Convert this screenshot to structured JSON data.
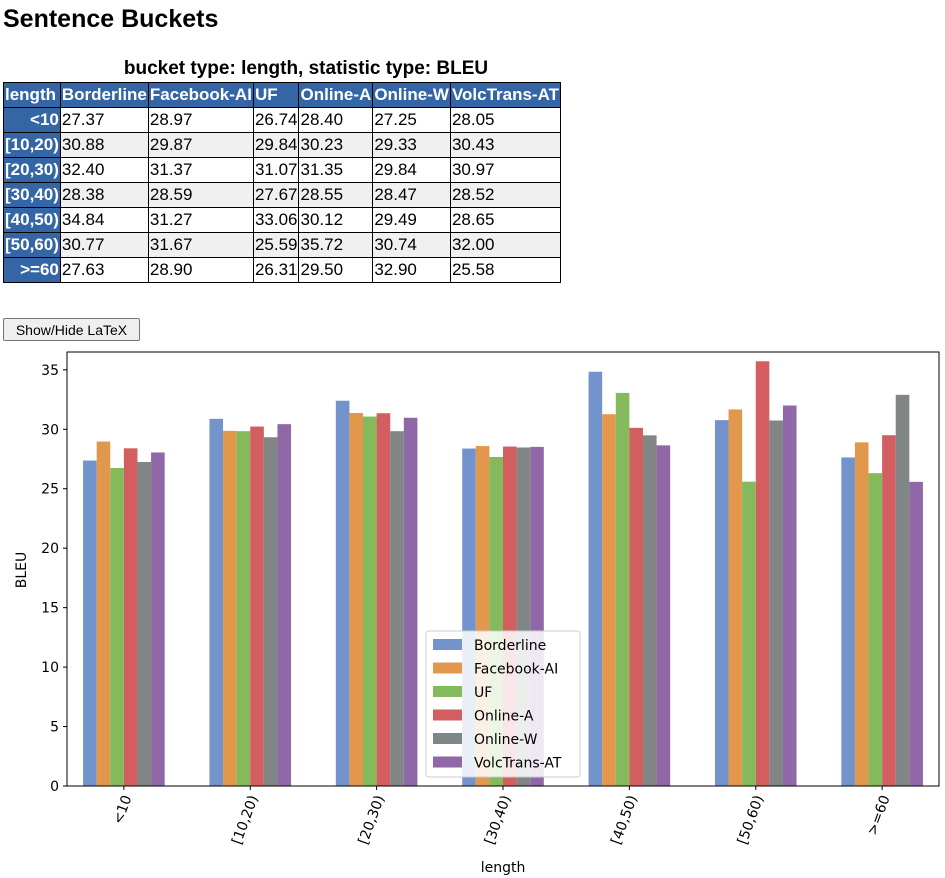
{
  "page": {
    "title": "Sentence Buckets",
    "caption": "bucket type: length, statistic type: BLEU",
    "latex_button": "Show/Hide LaTeX"
  },
  "table": {
    "columns": [
      "length",
      "Borderline",
      "Facebook-AI",
      "UF",
      "Online-A",
      "Online-W",
      "VolcTrans-AT"
    ],
    "rows": [
      {
        "label": "<10",
        "values": [
          "27.37",
          "28.97",
          "26.74",
          "28.40",
          "27.25",
          "28.05"
        ]
      },
      {
        "label": "[10,20)",
        "values": [
          "30.88",
          "29.87",
          "29.84",
          "30.23",
          "29.33",
          "30.43"
        ]
      },
      {
        "label": "[20,30)",
        "values": [
          "32.40",
          "31.37",
          "31.07",
          "31.35",
          "29.84",
          "30.97"
        ]
      },
      {
        "label": "[30,40)",
        "values": [
          "28.38",
          "28.59",
          "27.67",
          "28.55",
          "28.47",
          "28.52"
        ]
      },
      {
        "label": "[40,50)",
        "values": [
          "34.84",
          "31.27",
          "33.06",
          "30.12",
          "29.49",
          "28.65"
        ]
      },
      {
        "label": "[50,60)",
        "values": [
          "30.77",
          "31.67",
          "25.59",
          "35.72",
          "30.74",
          "32.00"
        ]
      },
      {
        "label": ">=60",
        "values": [
          "27.63",
          "28.90",
          "26.31",
          "29.50",
          "32.90",
          "25.58"
        ]
      }
    ]
  },
  "chart_data": {
    "type": "bar",
    "title": "",
    "xlabel": "length",
    "ylabel": "BLEU",
    "ylim": [
      0,
      36.5
    ],
    "yticks": [
      0,
      5,
      10,
      15,
      20,
      25,
      30,
      35
    ],
    "categories": [
      "<10",
      "[10,20)",
      "[20,30)",
      "[30,40)",
      "[40,50)",
      "[50,60)",
      ">=60"
    ],
    "legend_position": "lower-center",
    "series": [
      {
        "name": "Borderline",
        "color": "#7293cb",
        "values": [
          27.37,
          30.88,
          32.4,
          28.38,
          34.84,
          30.77,
          27.63
        ]
      },
      {
        "name": "Facebook-AI",
        "color": "#e1974c",
        "values": [
          28.97,
          29.87,
          31.37,
          28.59,
          31.27,
          31.67,
          28.9
        ]
      },
      {
        "name": "UF",
        "color": "#84ba5b",
        "values": [
          26.74,
          29.84,
          31.07,
          27.67,
          33.06,
          25.59,
          26.31
        ]
      },
      {
        "name": "Online-A",
        "color": "#d35e60",
        "values": [
          28.4,
          30.23,
          31.35,
          28.55,
          30.12,
          35.72,
          29.5
        ]
      },
      {
        "name": "Online-W",
        "color": "#808585",
        "values": [
          27.25,
          29.33,
          29.84,
          28.47,
          29.49,
          30.74,
          32.9
        ]
      },
      {
        "name": "VolcTrans-AT",
        "color": "#9067a7",
        "values": [
          28.05,
          30.43,
          30.97,
          28.52,
          28.65,
          32.0,
          25.58
        ]
      }
    ]
  }
}
